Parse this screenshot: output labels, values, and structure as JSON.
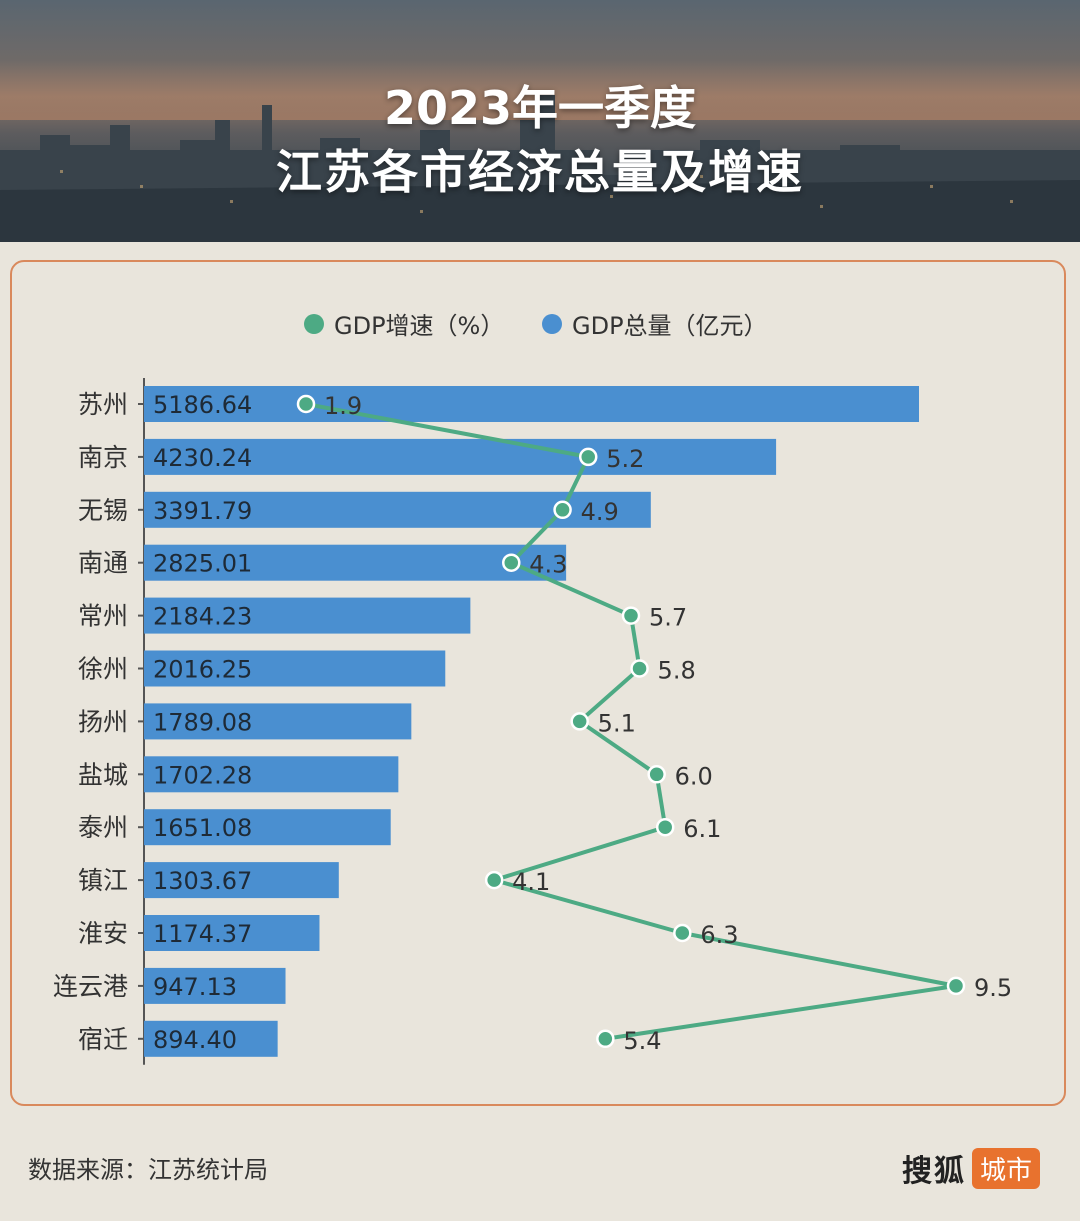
{
  "header": {
    "title_line1": "2023年一季度",
    "title_line2": "江苏各市经济总量及增速"
  },
  "legend": {
    "growth_label": "GDP增速（%）",
    "total_label": "GDP总量（亿元）",
    "growth_color": "#4daa84",
    "total_color": "#4a8fd0"
  },
  "chart_data": {
    "type": "bar",
    "orientation": "horizontal",
    "categories": [
      "苏州",
      "南京",
      "无锡",
      "南通",
      "常州",
      "徐州",
      "扬州",
      "盐城",
      "泰州",
      "镇江",
      "淮安",
      "连云港",
      "宿迁"
    ],
    "series": [
      {
        "name": "GDP总量（亿元）",
        "type": "bar",
        "values": [
          5186.64,
          4230.24,
          3391.79,
          2825.01,
          2184.23,
          2016.25,
          1789.08,
          1702.28,
          1651.08,
          1303.67,
          1174.37,
          947.13,
          894.4
        ],
        "labels": [
          "5186.64",
          "4230.24",
          "3391.79",
          "2825.01",
          "2184.23",
          "2016.25",
          "1789.08",
          "1702.28",
          "1651.08",
          "1303.67",
          "1174.37",
          "947.13",
          "894.40"
        ]
      },
      {
        "name": "GDP增速（%）",
        "type": "line",
        "values": [
          1.9,
          5.2,
          4.9,
          4.3,
          5.7,
          5.8,
          5.1,
          6.0,
          6.1,
          4.1,
          6.3,
          9.5,
          5.4
        ],
        "labels": [
          "1.9",
          "5.2",
          "4.9",
          "4.3",
          "5.7",
          "5.8",
          "5.1",
          "6.0",
          "6.1",
          "4.1",
          "6.3",
          "9.5",
          "5.4"
        ]
      }
    ],
    "legend_position": "top-center",
    "grid": false
  },
  "footer": {
    "source": "数据来源：江苏统计局",
    "brand": "搜狐",
    "brand_tag": "城市"
  }
}
